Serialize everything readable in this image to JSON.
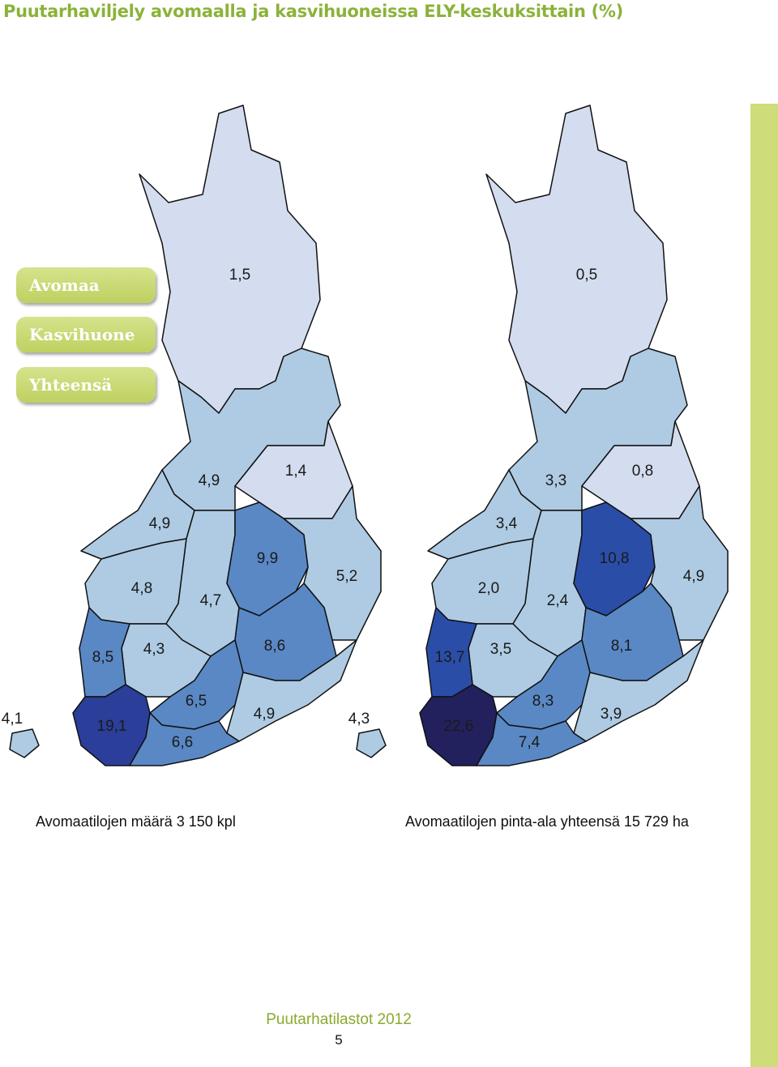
{
  "header": {
    "title": "Puutarhaviljely avomaalla ja kasvihuoneissa ELY-keskuksittain (%)"
  },
  "tabs": [
    "Avomaa",
    "Kasvihuone",
    "Yhteensä"
  ],
  "maps": [
    {
      "caption": "Avomaatilojen määrä 3 150 kpl",
      "regions": [
        {
          "label": "1,5",
          "color": "#d4dcef"
        },
        {
          "label": "4,9",
          "color": "#aecbe3"
        },
        {
          "label": "1,4",
          "color": "#d4dcef"
        },
        {
          "label": "4,9",
          "color": "#aecbe3"
        },
        {
          "label": "4,8",
          "color": "#aecbe3"
        },
        {
          "label": "4,7",
          "color": "#aecbe3"
        },
        {
          "label": "9,9",
          "color": "#5a88c5"
        },
        {
          "label": "5,2",
          "color": "#aecbe3"
        },
        {
          "label": "8,6",
          "color": "#5a88c5"
        },
        {
          "label": "4,3",
          "color": "#aecbe3"
        },
        {
          "label": "8,5",
          "color": "#5a88c5"
        },
        {
          "label": "6,5",
          "color": "#5a88c5"
        },
        {
          "label": "4,9",
          "color": "#aecbe3"
        },
        {
          "label": "19,1",
          "color": "#2a3e9a"
        },
        {
          "label": "6,6",
          "color": "#5a88c5"
        },
        {
          "label": "4,1",
          "color": "#aecbe3"
        }
      ]
    },
    {
      "caption": "Avomaatilojen pinta-ala yhteensä 15 729 ha",
      "regions": [
        {
          "label": "0,5",
          "color": "#d4dcef"
        },
        {
          "label": "3,3",
          "color": "#aecbe3"
        },
        {
          "label": "0,8",
          "color": "#d4dcef"
        },
        {
          "label": "3,4",
          "color": "#aecbe3"
        },
        {
          "label": "2,0",
          "color": "#aecbe3"
        },
        {
          "label": "2,4",
          "color": "#aecbe3"
        },
        {
          "label": "10,8",
          "color": "#2a4ea8"
        },
        {
          "label": "4,9",
          "color": "#aecbe3"
        },
        {
          "label": "8,1",
          "color": "#5a88c5"
        },
        {
          "label": "3,5",
          "color": "#aecbe3"
        },
        {
          "label": "13,7",
          "color": "#2a4ea8"
        },
        {
          "label": "8,3",
          "color": "#5a88c5"
        },
        {
          "label": "3,9",
          "color": "#aecbe3"
        },
        {
          "label": "22,6",
          "color": "#23205e"
        },
        {
          "label": "7,4",
          "color": "#5a88c5"
        },
        {
          "label": "4,3",
          "color": "#aecbe3"
        }
      ]
    }
  ],
  "footer": {
    "publication": "Puutarhatilastot 2012",
    "page": 5
  }
}
